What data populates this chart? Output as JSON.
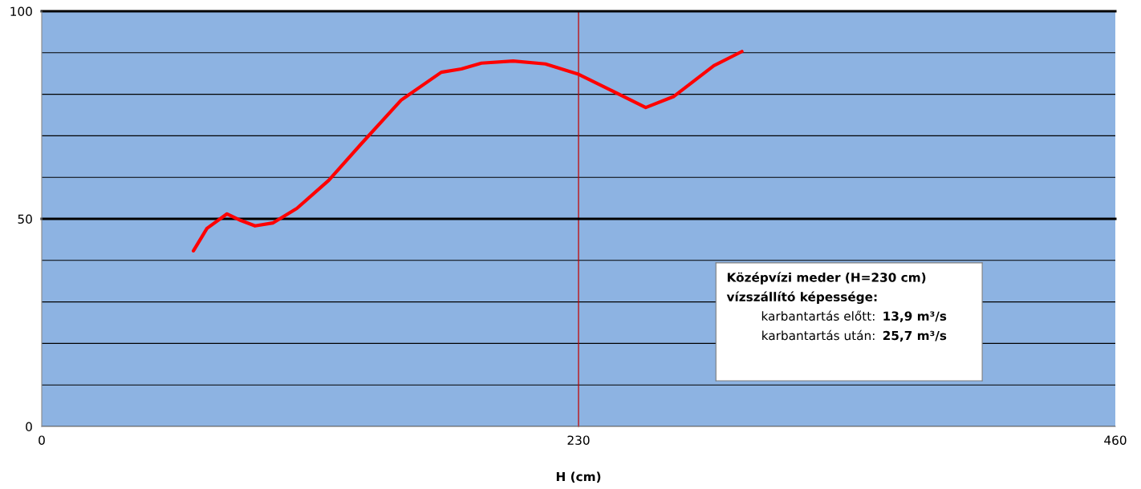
{
  "chart_data": {
    "type": "line",
    "xlabel": "H (cm)",
    "x": [
      65,
      70.8,
      79.4,
      85.3,
      91.4,
      99,
      109.3,
      123,
      136.8,
      154,
      171.2,
      179.8,
      188.4,
      202,
      215.8,
      229.6,
      243.4,
      258.8,
      270.9,
      288,
      300
    ],
    "series": [
      {
        "color": "#ff0000",
        "values": [
          42.3,
          47.7,
          51.2,
          49.6,
          48.3,
          49,
          52.5,
          59.3,
          68,
          78.6,
          85.3,
          86.1,
          87.5,
          88,
          87.3,
          84.9,
          81.1,
          76.8,
          79.5,
          86.9,
          90.3
        ]
      }
    ],
    "xlim": [
      0,
      460
    ],
    "xticks": [
      0,
      230,
      460
    ],
    "ylim": [
      0,
      100
    ],
    "yticks": [
      0,
      {
        "value": 10,
        "label": null
      },
      {
        "value": 20,
        "label": null
      },
      {
        "value": 30,
        "label": null
      },
      {
        "value": 40,
        "label": null
      },
      50,
      {
        "value": 60,
        "label": null
      },
      {
        "value": 70,
        "label": null
      },
      {
        "value": 80,
        "label": null
      },
      {
        "value": 90,
        "label": null
      },
      100
    ],
    "grid": "y",
    "marker": "none",
    "line_style": "solid",
    "ref_lines": [
      {
        "axis": "x",
        "value": 230,
        "label": null,
        "color": "#c00000"
      },
      {
        "axis": "y",
        "value": 50,
        "label": null,
        "color": "#000000"
      },
      {
        "axis": "y",
        "value": 100,
        "label": null,
        "color": "#000000"
      }
    ],
    "annotations": [
      "Középvízi meder (H=230 cm)",
      "vízszállító képessége:",
      "karbantartás előtt: 13,9 m³/s",
      "karbantartás után: 25,7 m³/s"
    ]
  }
}
